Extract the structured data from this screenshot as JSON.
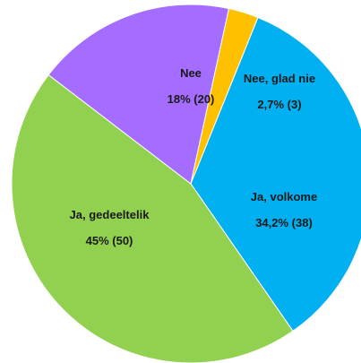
{
  "chart_data": {
    "type": "pie",
    "title": "",
    "slices": [
      {
        "label": "Ja, volkome",
        "value": 38,
        "percent_label": "34,2% (38)",
        "color": "#00B0F0"
      },
      {
        "label": "Ja, gedeeltelik",
        "value": 50,
        "percent_label": "45% (50)",
        "color": "#92D050"
      },
      {
        "label": "Nee",
        "value": 20,
        "percent_label": "18% (20)",
        "color": "#A46CFF"
      },
      {
        "label": "Nee, glad nie",
        "value": 3,
        "percent_label": "2,7% (3)",
        "color": "#FFC000"
      }
    ]
  }
}
